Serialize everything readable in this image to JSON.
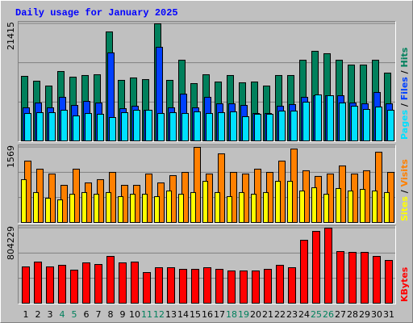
{
  "title": "Daily usage for January 2025",
  "legend_separator": " / ",
  "weekend_color": "#00805c",
  "day_color": "#000080",
  "weekends": [
    "4",
    "5",
    "11",
    "12",
    "18",
    "19",
    "25",
    "26"
  ],
  "grid_divisions": 3,
  "chart_data": [
    {
      "type": "bar",
      "categories": [
        "1",
        "2",
        "3",
        "4",
        "5",
        "6",
        "7",
        "8",
        "9",
        "10",
        "11",
        "12",
        "13",
        "14",
        "15",
        "16",
        "17",
        "18",
        "19",
        "20",
        "21",
        "22",
        "23",
        "24",
        "25",
        "26",
        "27",
        "28",
        "29",
        "30",
        "31"
      ],
      "ylim": [
        0,
        21415
      ],
      "yticks": [
        21415
      ],
      "series": [
        {
          "name": "Hits",
          "color": "#00805c",
          "values": [
            11880,
            11000,
            10120,
            12760,
            11730,
            12030,
            12170,
            19950,
            11150,
            11590,
            11290,
            21415,
            11150,
            14810,
            10560,
            12170,
            10850,
            12030,
            10710,
            10850,
            10120,
            12030,
            12030,
            14810,
            16430,
            15990,
            14810,
            13930,
            13930,
            14810,
            12470
          ]
        },
        {
          "name": "Files",
          "color": "#0040ff",
          "values": [
            6160,
            7040,
            6160,
            8070,
            6600,
            7330,
            7040,
            16140,
            6010,
            6450,
            5720,
            17160,
            6160,
            8650,
            6160,
            8070,
            6890,
            6890,
            6600,
            5130,
            5130,
            6450,
            6750,
            8070,
            8360,
            8360,
            8360,
            7040,
            6890,
            8950,
            6890
          ]
        },
        {
          "name": "Pages",
          "color": "#00e0ff",
          "values": [
            5130,
            5280,
            5280,
            5720,
            4690,
            5130,
            4990,
            4400,
            5280,
            5720,
            5720,
            5130,
            5280,
            5130,
            5430,
            5130,
            5280,
            5430,
            4550,
            4990,
            4990,
            5570,
            5570,
            7190,
            8510,
            8360,
            7040,
            6450,
            5870,
            6310,
            5720
          ]
        }
      ]
    },
    {
      "type": "bar",
      "ylim": [
        0,
        1569
      ],
      "yticks": [
        1569
      ],
      "series": [
        {
          "name": "Visits",
          "color": "#ff8000",
          "values": [
            1286,
            1119,
            1019,
            785,
            1119,
            835,
            902,
            1052,
            785,
            785,
            1019,
            835,
            985,
            1052,
            1569,
            1019,
            1436,
            1052,
            1019,
            1119,
            1052,
            1286,
            1536,
            1086,
            969,
            1019,
            1186,
            1019,
            1086,
            1470,
            1052
          ]
        },
        {
          "name": "Sites",
          "color": "#ffff00",
          "values": [
            902,
            635,
            518,
            484,
            601,
            635,
            601,
            635,
            551,
            601,
            601,
            551,
            668,
            601,
            635,
            868,
            635,
            551,
            635,
            601,
            635,
            868,
            868,
            668,
            735,
            601,
            718,
            668,
            701,
            668,
            635
          ]
        }
      ]
    },
    {
      "type": "bar",
      "ylim": [
        0,
        804229
      ],
      "yticks": [
        804229
      ],
      "series": [
        {
          "name": "KBytes",
          "color": "#ff0000",
          "values": [
            393580,
            444910,
            393580,
            410690,
            359350,
            436360,
            419240,
            504800,
            436360,
            444910,
            333680,
            385020,
            385020,
            367910,
            367910,
            385020,
            367910,
            350800,
            350800,
            350800,
            367910,
            410690,
            385020,
            675920,
            770040,
            804229,
            556140,
            547580,
            547580,
            504800,
            462020
          ]
        }
      ]
    }
  ]
}
